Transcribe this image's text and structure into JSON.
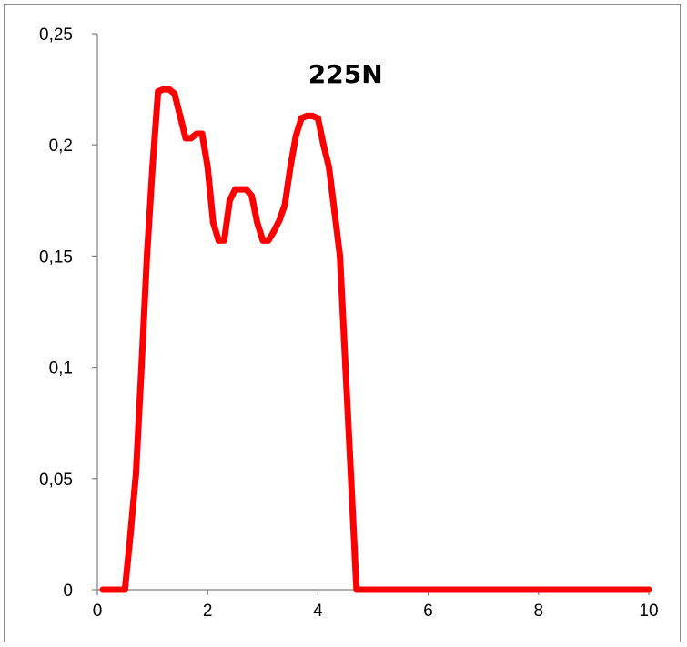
{
  "chart_data": {
    "type": "line",
    "title": "",
    "xlabel": "",
    "ylabel": "",
    "xlim": [
      0,
      10
    ],
    "ylim": [
      0,
      0.25
    ],
    "grid": false,
    "legend": "none",
    "x_ticks": [
      0,
      2,
      4,
      6,
      8,
      10
    ],
    "x_tick_labels": [
      "0",
      "2",
      "4",
      "6",
      "8",
      "10"
    ],
    "y_ticks": [
      0,
      0.05,
      0.1,
      0.15,
      0.2,
      0.25
    ],
    "y_tick_labels": [
      "0",
      "0,05",
      "0,1",
      "0,15",
      "0,2",
      "0,25"
    ],
    "annotations": [
      {
        "text": "225N",
        "x": 4.5,
        "y": 0.232
      }
    ],
    "series": [
      {
        "color": "#ff0000",
        "x": [
          0.1,
          0.5,
          0.6,
          0.7,
          0.8,
          0.9,
          1.0,
          1.1,
          1.2,
          1.3,
          1.4,
          1.5,
          1.6,
          1.7,
          1.8,
          1.9,
          2.0,
          2.1,
          2.2,
          2.3,
          2.4,
          2.5,
          2.6,
          2.7,
          2.8,
          2.9,
          3.0,
          3.1,
          3.2,
          3.3,
          3.4,
          3.5,
          3.6,
          3.7,
          3.8,
          3.9,
          4.0,
          4.1,
          4.2,
          4.3,
          4.4,
          4.5,
          4.6,
          4.7,
          10.0
        ],
        "y": [
          0,
          0,
          0.025,
          0.052,
          0.1,
          0.15,
          0.19,
          0.224,
          0.225,
          0.225,
          0.223,
          0.213,
          0.203,
          0.203,
          0.205,
          0.205,
          0.19,
          0.165,
          0.157,
          0.157,
          0.175,
          0.18,
          0.18,
          0.18,
          0.177,
          0.165,
          0.157,
          0.157,
          0.161,
          0.166,
          0.173,
          0.19,
          0.204,
          0.212,
          0.213,
          0.213,
          0.212,
          0.2,
          0.19,
          0.17,
          0.15,
          0.1,
          0.05,
          0,
          0
        ]
      }
    ]
  }
}
